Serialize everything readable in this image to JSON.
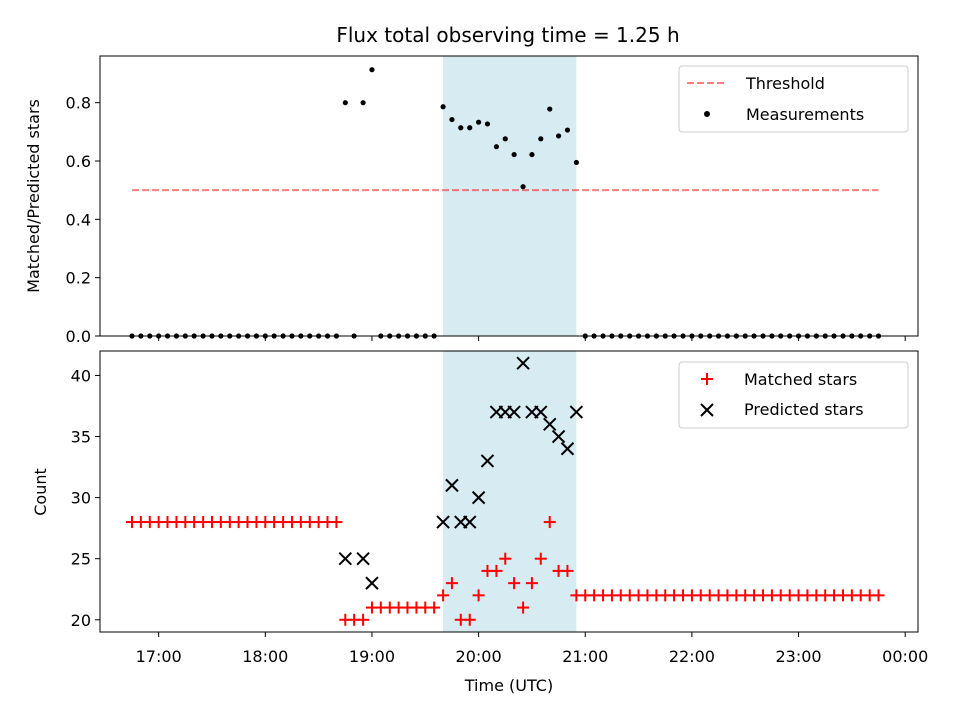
{
  "chart_data": [
    {
      "type": "scatter",
      "title": "Flux total observing time = 1.25 h",
      "xlabel": "",
      "ylabel": "Matched/Predicted stars",
      "xlim": [
        16.45,
        24.12
      ],
      "ylim": [
        0.0,
        0.96
      ],
      "yticks": [
        0.0,
        0.2,
        0.4,
        0.6,
        0.8
      ],
      "highlight_span": {
        "x_start": 19.667,
        "x_end": 20.917,
        "color": "#add8e6"
      },
      "threshold": {
        "name": "Threshold",
        "value": 0.5,
        "x_start": 16.75,
        "x_end": 23.75,
        "color": "#ff0000"
      },
      "series": [
        {
          "name": "Measurements",
          "color": "#000000",
          "points": [
            [
              16.75,
              0
            ],
            [
              16.833,
              0
            ],
            [
              16.917,
              0
            ],
            [
              17.0,
              0
            ],
            [
              17.083,
              0
            ],
            [
              17.167,
              0
            ],
            [
              17.25,
              0
            ],
            [
              17.333,
              0
            ],
            [
              17.417,
              0
            ],
            [
              17.5,
              0
            ],
            [
              17.583,
              0
            ],
            [
              17.667,
              0
            ],
            [
              17.75,
              0
            ],
            [
              17.833,
              0
            ],
            [
              17.917,
              0
            ],
            [
              18.0,
              0
            ],
            [
              18.083,
              0
            ],
            [
              18.167,
              0
            ],
            [
              18.25,
              0
            ],
            [
              18.333,
              0
            ],
            [
              18.417,
              0
            ],
            [
              18.5,
              0
            ],
            [
              18.583,
              0
            ],
            [
              18.667,
              0
            ],
            [
              18.75,
              0.8
            ],
            [
              18.833,
              0
            ],
            [
              18.917,
              0.8
            ],
            [
              19.0,
              0.913
            ],
            [
              19.083,
              0
            ],
            [
              19.167,
              0
            ],
            [
              19.25,
              0
            ],
            [
              19.333,
              0
            ],
            [
              19.417,
              0
            ],
            [
              19.5,
              0
            ],
            [
              19.583,
              0
            ],
            [
              19.667,
              0.786
            ],
            [
              19.75,
              0.742
            ],
            [
              19.833,
              0.714
            ],
            [
              19.917,
              0.714
            ],
            [
              20.0,
              0.733
            ],
            [
              20.083,
              0.727
            ],
            [
              20.167,
              0.649
            ],
            [
              20.25,
              0.676
            ],
            [
              20.333,
              0.622
            ],
            [
              20.417,
              0.512
            ],
            [
              20.5,
              0.622
            ],
            [
              20.583,
              0.676
            ],
            [
              20.667,
              0.778
            ],
            [
              20.75,
              0.686
            ],
            [
              20.833,
              0.706
            ],
            [
              20.917,
              0.595
            ],
            [
              21.0,
              0
            ],
            [
              21.083,
              0
            ],
            [
              21.167,
              0
            ],
            [
              21.25,
              0
            ],
            [
              21.333,
              0
            ],
            [
              21.417,
              0
            ],
            [
              21.5,
              0
            ],
            [
              21.583,
              0
            ],
            [
              21.667,
              0
            ],
            [
              21.75,
              0
            ],
            [
              21.833,
              0
            ],
            [
              21.917,
              0
            ],
            [
              22.0,
              0
            ],
            [
              22.083,
              0
            ],
            [
              22.167,
              0
            ],
            [
              22.25,
              0
            ],
            [
              22.333,
              0
            ],
            [
              22.417,
              0
            ],
            [
              22.5,
              0
            ],
            [
              22.583,
              0
            ],
            [
              22.667,
              0
            ],
            [
              22.75,
              0
            ],
            [
              22.833,
              0
            ],
            [
              22.917,
              0
            ],
            [
              23.0,
              0
            ],
            [
              23.083,
              0
            ],
            [
              23.167,
              0
            ],
            [
              23.25,
              0
            ],
            [
              23.333,
              0
            ],
            [
              23.417,
              0
            ],
            [
              23.5,
              0
            ],
            [
              23.583,
              0
            ],
            [
              23.667,
              0
            ],
            [
              23.75,
              0
            ]
          ]
        }
      ],
      "legend": {
        "placement": "upper right",
        "entries": [
          "Threshold",
          "Measurements"
        ]
      }
    },
    {
      "type": "scatter",
      "title": "",
      "xlabel": "Time (UTC)",
      "ylabel": "Count",
      "xlim": [
        16.45,
        24.12
      ],
      "ylim": [
        19.0,
        42.0
      ],
      "yticks": [
        20,
        25,
        30,
        35,
        40
      ],
      "xticks": [
        {
          "value": 17,
          "label": "17:00"
        },
        {
          "value": 18,
          "label": "18:00"
        },
        {
          "value": 19,
          "label": "19:00"
        },
        {
          "value": 20,
          "label": "20:00"
        },
        {
          "value": 21,
          "label": "21:00"
        },
        {
          "value": 22,
          "label": "22:00"
        },
        {
          "value": 23,
          "label": "23:00"
        },
        {
          "value": 24,
          "label": "00:00"
        }
      ],
      "highlight_span": {
        "x_start": 19.667,
        "x_end": 20.917,
        "color": "#add8e6"
      },
      "series": [
        {
          "name": "Matched stars",
          "marker": "plus",
          "color": "#ff0000",
          "points": [
            [
              16.75,
              28
            ],
            [
              16.833,
              28
            ],
            [
              16.917,
              28
            ],
            [
              17.0,
              28
            ],
            [
              17.083,
              28
            ],
            [
              17.167,
              28
            ],
            [
              17.25,
              28
            ],
            [
              17.333,
              28
            ],
            [
              17.417,
              28
            ],
            [
              17.5,
              28
            ],
            [
              17.583,
              28
            ],
            [
              17.667,
              28
            ],
            [
              17.75,
              28
            ],
            [
              17.833,
              28
            ],
            [
              17.917,
              28
            ],
            [
              18.0,
              28
            ],
            [
              18.083,
              28
            ],
            [
              18.167,
              28
            ],
            [
              18.25,
              28
            ],
            [
              18.333,
              28
            ],
            [
              18.417,
              28
            ],
            [
              18.5,
              28
            ],
            [
              18.583,
              28
            ],
            [
              18.667,
              28
            ],
            [
              18.75,
              20
            ],
            [
              18.833,
              20
            ],
            [
              18.917,
              20
            ],
            [
              19.0,
              21
            ],
            [
              19.083,
              21
            ],
            [
              19.167,
              21
            ],
            [
              19.25,
              21
            ],
            [
              19.333,
              21
            ],
            [
              19.417,
              21
            ],
            [
              19.5,
              21
            ],
            [
              19.583,
              21
            ],
            [
              19.667,
              22
            ],
            [
              19.75,
              23
            ],
            [
              19.833,
              20
            ],
            [
              19.917,
              20
            ],
            [
              20.0,
              22
            ],
            [
              20.083,
              24
            ],
            [
              20.167,
              24
            ],
            [
              20.25,
              25
            ],
            [
              20.333,
              23
            ],
            [
              20.417,
              21
            ],
            [
              20.5,
              23
            ],
            [
              20.583,
              25
            ],
            [
              20.667,
              28
            ],
            [
              20.75,
              24
            ],
            [
              20.833,
              24
            ],
            [
              20.917,
              22
            ],
            [
              21.0,
              22
            ],
            [
              21.083,
              22
            ],
            [
              21.167,
              22
            ],
            [
              21.25,
              22
            ],
            [
              21.333,
              22
            ],
            [
              21.417,
              22
            ],
            [
              21.5,
              22
            ],
            [
              21.583,
              22
            ],
            [
              21.667,
              22
            ],
            [
              21.75,
              22
            ],
            [
              21.833,
              22
            ],
            [
              21.917,
              22
            ],
            [
              22.0,
              22
            ],
            [
              22.083,
              22
            ],
            [
              22.167,
              22
            ],
            [
              22.25,
              22
            ],
            [
              22.333,
              22
            ],
            [
              22.417,
              22
            ],
            [
              22.5,
              22
            ],
            [
              22.583,
              22
            ],
            [
              22.667,
              22
            ],
            [
              22.75,
              22
            ],
            [
              22.833,
              22
            ],
            [
              22.917,
              22
            ],
            [
              23.0,
              22
            ],
            [
              23.083,
              22
            ],
            [
              23.167,
              22
            ],
            [
              23.25,
              22
            ],
            [
              23.333,
              22
            ],
            [
              23.417,
              22
            ],
            [
              23.5,
              22
            ],
            [
              23.583,
              22
            ],
            [
              23.667,
              22
            ],
            [
              23.75,
              22
            ]
          ]
        },
        {
          "name": "Predicted stars",
          "marker": "x",
          "color": "#000000",
          "points": [
            [
              18.75,
              25
            ],
            [
              18.917,
              25
            ],
            [
              19.0,
              23
            ],
            [
              19.667,
              28
            ],
            [
              19.75,
              31
            ],
            [
              19.833,
              28
            ],
            [
              19.917,
              28
            ],
            [
              20.0,
              30
            ],
            [
              20.083,
              33
            ],
            [
              20.167,
              37
            ],
            [
              20.25,
              37
            ],
            [
              20.333,
              37
            ],
            [
              20.417,
              41
            ],
            [
              20.5,
              37
            ],
            [
              20.583,
              37
            ],
            [
              20.667,
              36
            ],
            [
              20.75,
              35
            ],
            [
              20.833,
              34
            ],
            [
              20.917,
              37
            ]
          ]
        }
      ],
      "legend": {
        "placement": "upper right",
        "entries": [
          "Matched stars",
          "Predicted stars"
        ]
      }
    }
  ]
}
